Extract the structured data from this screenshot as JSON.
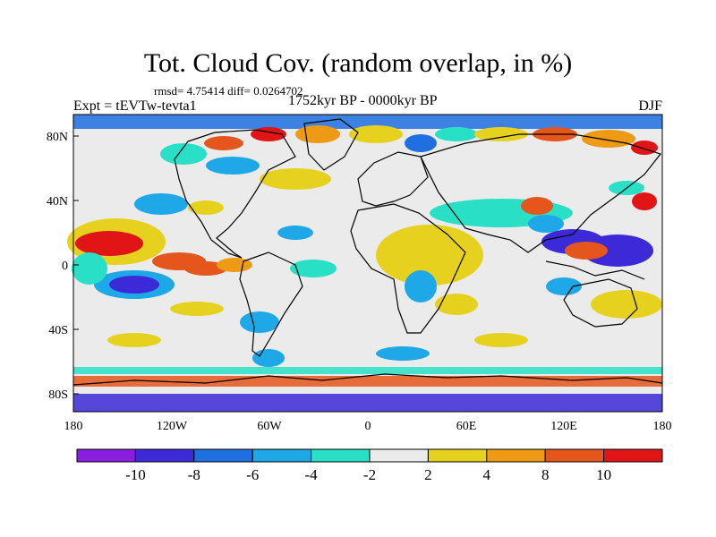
{
  "title": "Tot. Cloud Cov. (random overlap, in %)",
  "stats": "rmsd= 4.75414 diff= 0.0264702",
  "experiment": "Expt = tEVTw-tevta1",
  "period": "1752kyr BP - 0000kyr BP",
  "season": "DJF",
  "lon_ticks": [
    "180",
    "120W",
    "60W",
    "0",
    "60E",
    "120E",
    "180"
  ],
  "lat_ticks": [
    "80N",
    "40N",
    "0",
    "40S",
    "80S"
  ],
  "colorbar": {
    "labels": [
      "-10",
      "-8",
      "-6",
      "-4",
      "-2",
      "2",
      "4",
      "8",
      "10"
    ],
    "levels": [
      -10,
      -8,
      -6,
      -4,
      -2,
      2,
      4,
      8,
      10
    ],
    "colors": [
      "#8a1ee0",
      "#3c2ad8",
      "#1f6fe0",
      "#1fa8e8",
      "#29e0c6",
      "#ebebeb",
      "#e6d21e",
      "#ee9a14",
      "#e5561c",
      "#e11515"
    ]
  },
  "colors": {
    "neutral": "#ebebeb",
    "coastline": "#000000"
  }
}
